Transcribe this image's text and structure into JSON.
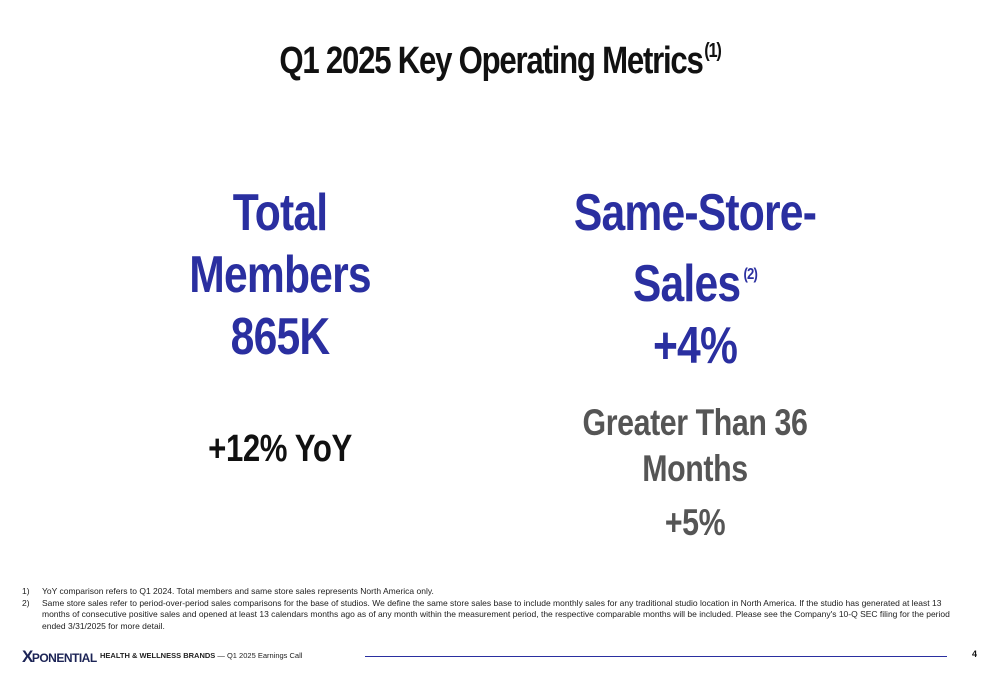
{
  "title": {
    "text": "Q1 2025 Key Operating Metrics",
    "sup": "(1)"
  },
  "left_metric": {
    "line1": "Total",
    "line2": "Members",
    "value": "865K",
    "yoy": "+12% YoY"
  },
  "right_metric": {
    "line1": "Same-Store-",
    "line2": "Sales",
    "sup": "(2)",
    "value": "+4%"
  },
  "right_sub": {
    "line1": "Greater Than 36",
    "line2": "Months",
    "value": "+5%"
  },
  "footnotes": [
    {
      "num": "1)",
      "text": "YoY comparison refers to Q1 2024. Total members and same store sales represents North America only."
    },
    {
      "num": "2)",
      "text": "Same store sales refer to period-over-period sales comparisons for the base of studios. We define the same store sales base to include monthly sales for any traditional studio location in North America. If the studio has generated at least 13 months of consecutive positive sales and opened at least 13 calendars months ago as of any month within the measurement period, the respective comparable months will be included. Please see the Company's 10-Q SEC filing for the period ended 3/31/2025 for more detail."
    }
  ],
  "footer": {
    "logo_x": "X",
    "logo_text": "PONENTIAL",
    "brand": "HEALTH & WELLNESS BRANDS",
    "separator": "—",
    "call": "Q1 2025 Earnings Call",
    "page": "4"
  },
  "colors": {
    "accent": "#2a2fa0",
    "sub_gray": "#555555"
  }
}
